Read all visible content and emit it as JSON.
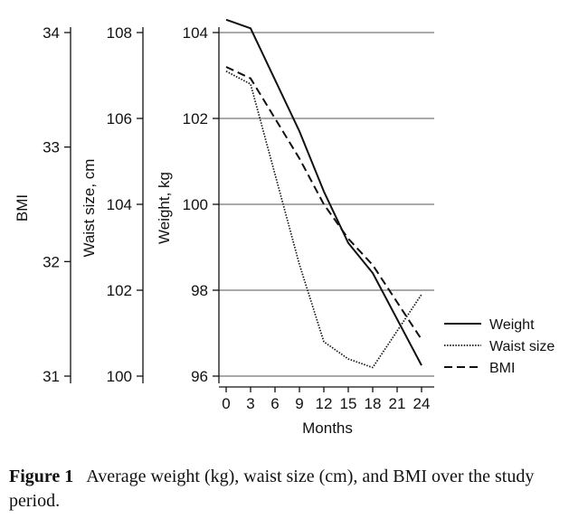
{
  "chart_data": {
    "type": "line",
    "x": [
      0,
      3,
      9,
      12,
      15,
      18,
      24
    ],
    "xlabel": "Months",
    "x_ticks": [
      "0",
      "3",
      "6",
      "9",
      "12",
      "15",
      "18",
      "21",
      "24"
    ],
    "xlim": [
      0,
      24
    ],
    "axes": [
      {
        "key": "bmi",
        "label": "BMI",
        "ticks": [
          "31",
          "32",
          "33",
          "34"
        ],
        "ylim": [
          31,
          34
        ]
      },
      {
        "key": "waist",
        "label": "Waist size, cm",
        "ticks": [
          "100",
          "102",
          "104",
          "106",
          "108"
        ],
        "ylim": [
          100,
          108
        ]
      },
      {
        "key": "weight",
        "label": "Weight, kg",
        "ticks": [
          "96",
          "98",
          "100",
          "102",
          "104"
        ],
        "ylim": [
          96,
          104
        ]
      }
    ],
    "grid": true,
    "legend_position": "bottom-right",
    "series": [
      {
        "name": "Weight",
        "axis": "weight",
        "style": "solid",
        "values": [
          104.3,
          104.1,
          101.7,
          100.3,
          99.1,
          98.4,
          96.25
        ]
      },
      {
        "name": "Waist size",
        "axis": "waist",
        "style": "dotted",
        "values": [
          107.1,
          106.8,
          102.6,
          100.8,
          100.4,
          100.2,
          101.9
        ]
      },
      {
        "name": "BMI",
        "axis": "bmi",
        "style": "dashed",
        "values": [
          33.7,
          33.6,
          32.9,
          32.5,
          32.2,
          31.97,
          31.32
        ]
      }
    ]
  },
  "caption": {
    "label": "Figure 1",
    "text": "Average weight (kg), waist size (cm), and BMI over the study period."
  }
}
